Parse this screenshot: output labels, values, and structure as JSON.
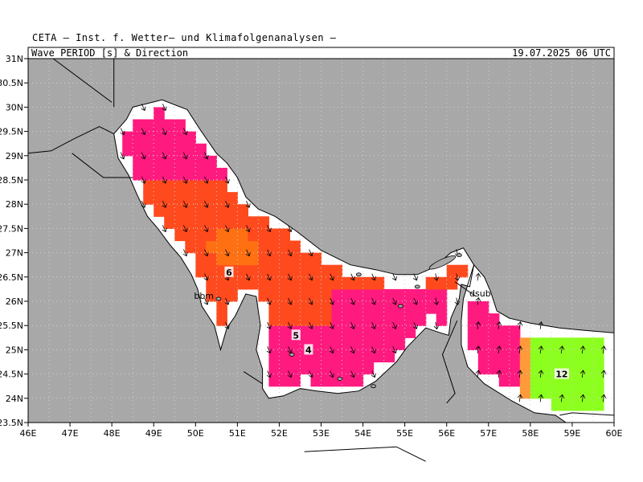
{
  "header": {
    "institute": "CETA – Inst. f. Wetter– und Klimafolgenanalysen –"
  },
  "map": {
    "title_left": "Wave_PERIOD_[s]_&_Direction",
    "title_right": "19.07.2025 06 UTC",
    "lon_ticks": [
      "46E",
      "47E",
      "48E",
      "49E",
      "50E",
      "51E",
      "52E",
      "53E",
      "54E",
      "55E",
      "56E",
      "57E",
      "58E",
      "59E",
      "60E"
    ],
    "lat_ticks": [
      "23.5N",
      "24N",
      "24.5N",
      "25N",
      "25.5N",
      "26N",
      "26.5N",
      "27N",
      "27.5N",
      "28N",
      "28.5N",
      "29N",
      "29.5N",
      "30N",
      "30.5N",
      "31N"
    ],
    "contour_labels": [
      {
        "text": "6",
        "lon": 50.8,
        "lat": 26.6
      },
      {
        "text": "5",
        "lon": 52.4,
        "lat": 25.3
      },
      {
        "text": "4",
        "lon": 52.7,
        "lat": 25.0
      },
      {
        "text": "12",
        "lon": 58.75,
        "lat": 24.5
      }
    ],
    "place_labels": [
      {
        "text": "bbm",
        "lon": 50.2,
        "lat": 26.05
      },
      {
        "text": "dsub",
        "lon": 56.8,
        "lat": 26.1
      }
    ],
    "colors": {
      "land": "#a8a8a8",
      "sea_no_data": "#ffffff",
      "period_4_5": "#ff1a80",
      "period_5_6": "#ff4a1e",
      "period_6_7": "#ff7012",
      "period_10_12": "#ff9a3a",
      "period_12_plus": "#8dff1e"
    }
  }
}
